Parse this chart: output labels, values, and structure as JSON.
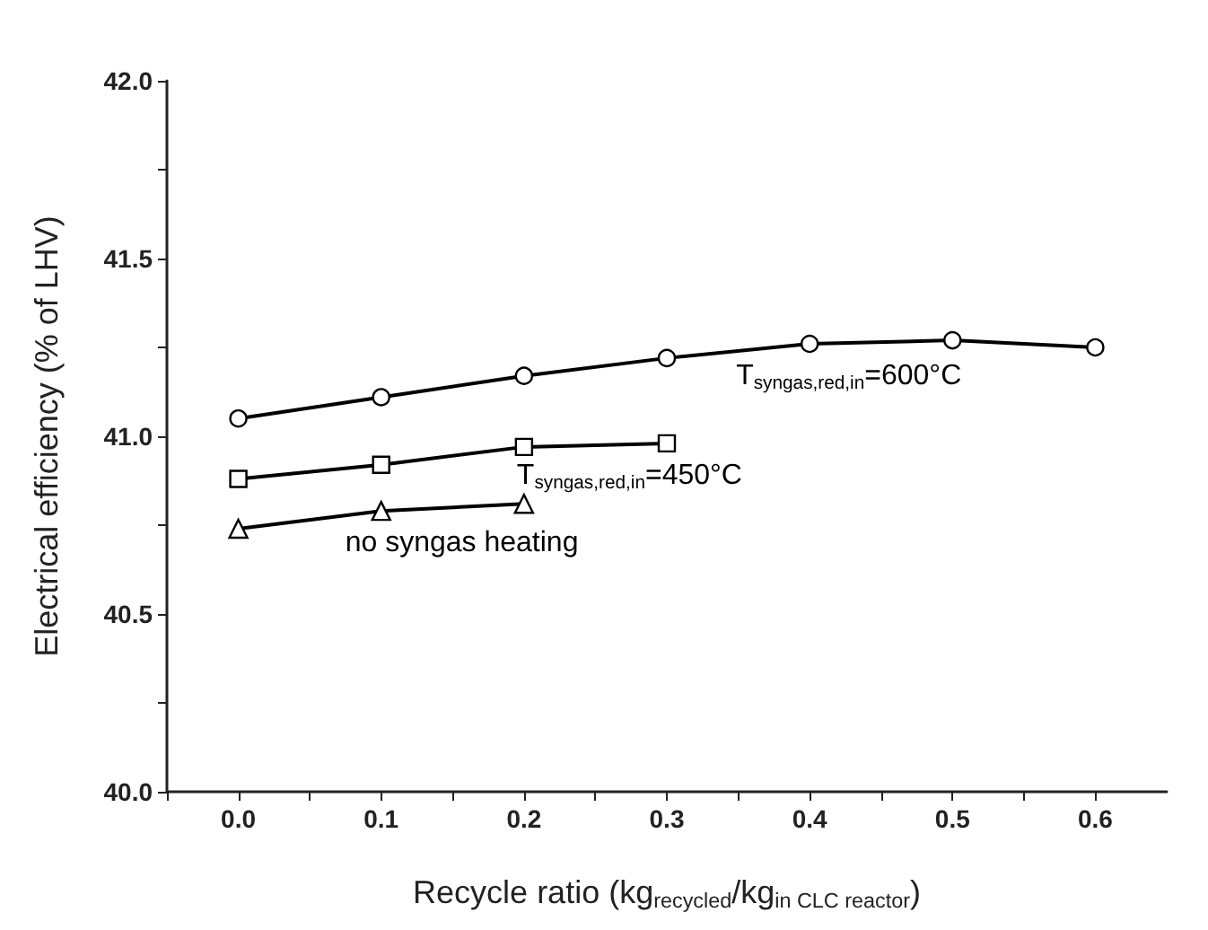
{
  "chart_data": {
    "type": "line",
    "xlabel": "Recycle ratio (kg$_{recycled}$/kg$_{in CLC reactor}$)",
    "ylabel": "Electrical efficiency (% of LHV)",
    "x": [
      0.0,
      0.1,
      0.2,
      0.3,
      0.4,
      0.5,
      0.6
    ],
    "series": [
      {
        "name": "T$_{syngas,red,in}$=600°C",
        "color": "#000000",
        "marker": "circle",
        "values": [
          41.05,
          41.11,
          41.17,
          41.22,
          41.26,
          41.27,
          41.25
        ]
      },
      {
        "name": "T$_{syngas,red,in}$=450°C",
        "color": "#000000",
        "marker": "square",
        "values": [
          40.88,
          40.92,
          40.97,
          40.98,
          null,
          null,
          null
        ]
      },
      {
        "name": "no syngas heating",
        "color": "#000000",
        "marker": "triangle",
        "values": [
          40.74,
          40.79,
          40.81,
          null,
          null,
          null,
          null
        ]
      }
    ],
    "xlim": [
      -0.05,
      0.65
    ],
    "xticks": [
      {
        "value": -0.05,
        "label": null
      },
      {
        "value": 0.0,
        "label": "0.0"
      },
      {
        "value": 0.05,
        "label": null
      },
      {
        "value": 0.1,
        "label": "0.1"
      },
      {
        "value": 0.15,
        "label": null
      },
      {
        "value": 0.2,
        "label": "0.2"
      },
      {
        "value": 0.25,
        "label": null
      },
      {
        "value": 0.3,
        "label": "0.3"
      },
      {
        "value": 0.35,
        "label": null
      },
      {
        "value": 0.4,
        "label": "0.4"
      },
      {
        "value": 0.45,
        "label": null
      },
      {
        "value": 0.5,
        "label": "0.5"
      },
      {
        "value": 0.55,
        "label": null
      },
      {
        "value": 0.6,
        "label": "0.6"
      }
    ],
    "ylim": [
      40.0,
      42.0
    ],
    "yticks": [
      {
        "value": 40.0,
        "label": "40.0"
      },
      {
        "value": 40.25,
        "label": null
      },
      {
        "value": 40.5,
        "label": "40.5"
      },
      {
        "value": 40.75,
        "label": null
      },
      {
        "value": 41.0,
        "label": "41.0"
      },
      {
        "value": 41.25,
        "label": null
      },
      {
        "value": 41.5,
        "label": "41.5"
      },
      {
        "value": 41.75,
        "label": null
      },
      {
        "value": 42.0,
        "label": "42.0"
      }
    ],
    "grid": false,
    "line_style": "solid"
  }
}
